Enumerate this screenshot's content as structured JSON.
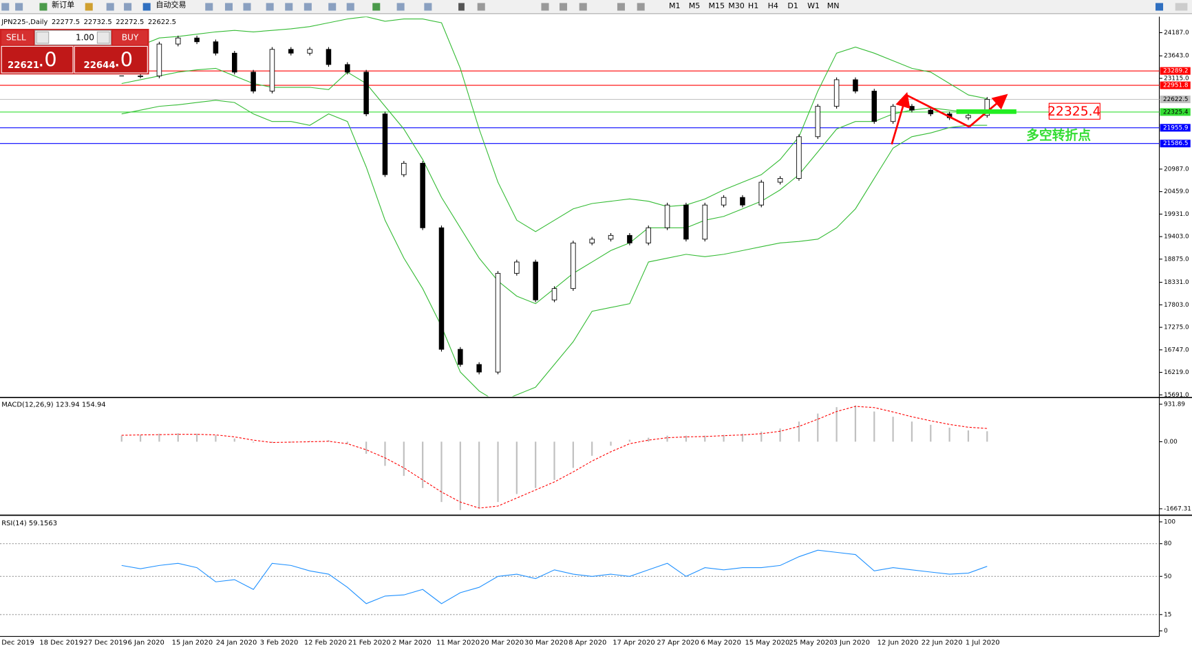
{
  "toolbar": {
    "new_order": "新订单",
    "auto_trading": "自动交易",
    "timeframes": [
      "M1",
      "M5",
      "M15",
      "M30",
      "H1",
      "H4",
      "D1",
      "W1",
      "MN"
    ]
  },
  "trade_panel": {
    "sell": "SELL",
    "buy": "BUY",
    "lot": "1.00",
    "sell_price": "22621",
    "sell_tail": ".0",
    "buy_price": "22644",
    "buy_tail": ".0"
  },
  "time_axis": [
    "Dec 2019",
    "18 Dec 2019",
    "27 Dec 2019",
    "6 Jan 2020",
    "15 Jan 2020",
    "24 Jan 2020",
    "3 Feb 2020",
    "12 Feb 2020",
    "21 Feb 2020",
    "2 Mar 2020",
    "11 Mar 2020",
    "20 Mar 2020",
    "30 Mar 2020",
    "8 Apr 2020",
    "17 Apr 2020",
    "27 Apr 2020",
    "6 May 2020",
    "15 May 2020",
    "25 May 2020",
    "3 Jun 2020",
    "12 Jun 2020",
    "22 Jun 2020",
    "1 Jul 2020"
  ],
  "chart_data": [
    {
      "type": "candlestick",
      "title": "JPN225-,Daily",
      "ohlc": [
        22277.5,
        22732.5,
        22272.5,
        22622.5
      ],
      "ylim": [
        15655,
        24561
      ],
      "yticks": [
        {
          "value": 24187,
          "label": "24187.0"
        },
        {
          "value": 23643,
          "label": "23643.0"
        },
        {
          "value": 23115,
          "label": "23115.0"
        },
        {
          "value": 20987,
          "label": "20987.0"
        },
        {
          "value": 20459,
          "label": "20459.0"
        },
        {
          "value": 19931,
          "label": "19931.0"
        },
        {
          "value": 19403,
          "label": "19403.0"
        },
        {
          "value": 18875,
          "label": "18875.0"
        },
        {
          "value": 18331,
          "label": "18331.0"
        },
        {
          "value": 17803,
          "label": "17803.0"
        },
        {
          "value": 17275,
          "label": "17275.0"
        },
        {
          "value": 16747,
          "label": "16747.0"
        },
        {
          "value": 16219,
          "label": "16219.0"
        },
        {
          "value": 15691,
          "label": "15691.0"
        }
      ],
      "closes": [
        23172,
        23172,
        23920,
        24062,
        23973,
        23706,
        23261,
        22816,
        23795,
        23706,
        23795,
        23439,
        23261,
        22281,
        20856,
        21124,
        19610,
        16759,
        16404,
        16226,
        18541,
        18808,
        17918,
        18185,
        19254,
        19343,
        19432,
        19254,
        19610,
        20144,
        19343,
        20144,
        20322,
        20144,
        20679,
        20768,
        21747,
        22459,
        23083,
        22816,
        22103,
        22459,
        22370,
        22281,
        22192,
        22246,
        22622.5
      ],
      "series": [
        {
          "name": "upper",
          "color": "#33bb33",
          "values": [
            23617,
            23884,
            24062,
            24098,
            24151,
            24205,
            24240,
            24205,
            24240,
            24276,
            24330,
            24419,
            24508,
            24561,
            24454,
            24508,
            24508,
            24419,
            23350,
            21925,
            20679,
            19788,
            19521,
            19788,
            20055,
            20180,
            20233,
            20287,
            20233,
            20108,
            20144,
            20287,
            20500,
            20679,
            20856,
            21213,
            21747,
            22816,
            23706,
            23849,
            23706,
            23528,
            23350,
            23261,
            22994,
            22727,
            22638
          ]
        },
        {
          "name": "middle",
          "color": "#33bb33",
          "values": [
            22994,
            23083,
            23172,
            23261,
            23314,
            23350,
            23172,
            22994,
            22905,
            22905,
            22905,
            22851,
            23261,
            22994,
            22459,
            21925,
            21213,
            20322,
            19610,
            18898,
            18363,
            18007,
            17829,
            18185,
            18541,
            18808,
            19076,
            19254,
            19610,
            19610,
            19610,
            19788,
            19877,
            20055,
            20233,
            20500,
            20856,
            21391,
            21925,
            22103,
            22103,
            22281,
            22370,
            22424,
            22370,
            22317,
            22281
          ]
        },
        {
          "name": "lower",
          "color": "#33bb33",
          "values": [
            22281,
            22370,
            22459,
            22495,
            22549,
            22602,
            22549,
            22281,
            22103,
            22103,
            22014,
            22281,
            22103,
            21035,
            19788,
            18898,
            18185,
            17295,
            16226,
            15781,
            15514,
            15692,
            15870,
            16404,
            16938,
            17651,
            17740,
            17829,
            18808,
            18898,
            18987,
            18933,
            18987,
            19076,
            19165,
            19254,
            19289,
            19343,
            19610,
            20055,
            20768,
            21480,
            21747,
            21836,
            21961,
            22014,
            22014
          ]
        }
      ],
      "levels": [
        {
          "value": 23289.2,
          "color": "#ff0000"
        },
        {
          "value": 22951.8,
          "color": "#ff0000"
        },
        {
          "value": 22622.5,
          "color": "#c0c0c0"
        },
        {
          "value": 22325.4,
          "color": "#33dd33"
        },
        {
          "value": 21955.9,
          "color": "#0000ff"
        },
        {
          "value": 21586.5,
          "color": "#0000ff"
        }
      ],
      "annotation": "22325.4",
      "annotation_text": "多空转折点"
    },
    {
      "type": "macd",
      "title": "MACD(12,26,9)",
      "readout": [
        123.94,
        154.94
      ],
      "ylim": [
        -1800,
        1070
      ],
      "yticks": [
        931.89,
        {
          "value": 0,
          "label": "0.00"
        },
        -1667.31
      ],
      "histogram": {
        "color": "#c0c0c0",
        "values": [
          150,
          170,
          200,
          210,
          200,
          160,
          80,
          -20,
          -30,
          -20,
          20,
          40,
          -50,
          -300,
          -600,
          -850,
          -1150,
          -1500,
          -1700,
          -1650,
          -1500,
          -1300,
          -1150,
          -950,
          -650,
          -350,
          -100,
          50,
          100,
          150,
          150,
          150,
          170,
          200,
          250,
          330,
          500,
          700,
          860,
          900,
          750,
          620,
          500,
          420,
          350,
          280,
          260
        ]
      },
      "signal": {
        "color": "#ff0000",
        "values": [
          160,
          170,
          175,
          185,
          185,
          170,
          120,
          40,
          -20,
          -10,
          0,
          10,
          -50,
          -200,
          -400,
          -650,
          -950,
          -1250,
          -1500,
          -1650,
          -1600,
          -1400,
          -1200,
          -1000,
          -750,
          -480,
          -250,
          -50,
          40,
          100,
          120,
          130,
          150,
          170,
          200,
          260,
          380,
          560,
          750,
          880,
          850,
          740,
          620,
          520,
          430,
          360,
          330
        ]
      }
    },
    {
      "type": "line",
      "title": "RSI(14)",
      "readout": 59.1563,
      "ylim": [
        -5,
        105
      ],
      "yticks": [
        100,
        80,
        50,
        15,
        0
      ],
      "levels": [
        80,
        50,
        15
      ],
      "color": "#1e90ff",
      "values": [
        60,
        57,
        60,
        62,
        58,
        45,
        47,
        38,
        62,
        60,
        55,
        52,
        40,
        25,
        32,
        33,
        38,
        25,
        35,
        40,
        50,
        52,
        48,
        56,
        52,
        50,
        52,
        50,
        56,
        62,
        50,
        58,
        56,
        58,
        58,
        60,
        68,
        74,
        72,
        70,
        55,
        58,
        56,
        54,
        52,
        53,
        59.1563
      ]
    }
  ]
}
